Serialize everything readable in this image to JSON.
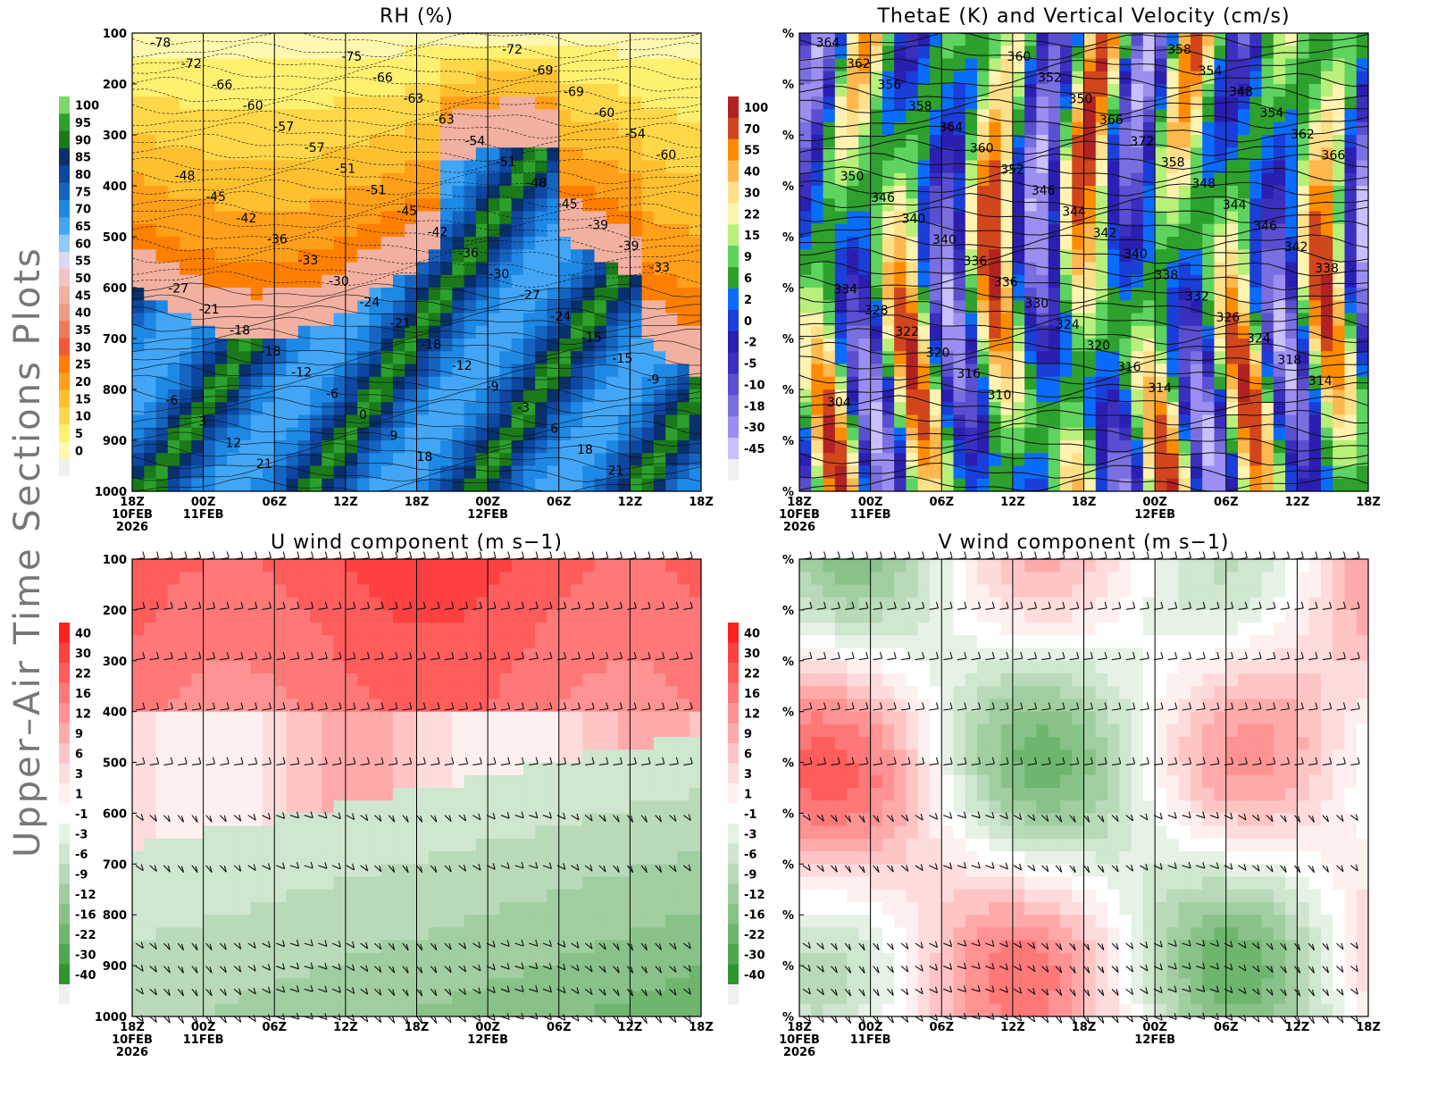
{
  "page": {
    "side_title": "Upper–Air Time Sections Plots"
  },
  "chart_data": [
    {
      "type": "heatmap",
      "id": "rh",
      "title": "RH (%)",
      "y_axis": {
        "range": [
          1000,
          100
        ],
        "reversed": true,
        "tick_labels": [
          "100",
          "200",
          "300",
          "400",
          "500",
          "600",
          "700",
          "800",
          "900",
          "1000"
        ]
      },
      "x_axis": {
        "tick_labels": [
          "18Z",
          "00Z",
          "06Z",
          "12Z",
          "18Z",
          "00Z",
          "06Z",
          "12Z",
          "18Z"
        ],
        "date_labels": [
          {
            "at": 0,
            "text": "10FEB"
          },
          {
            "at": 0,
            "text2": "2026"
          },
          {
            "at": 1,
            "text": "11FEB"
          },
          {
            "at": 5,
            "text": "12FEB"
          }
        ],
        "start": "18Z 10FEB 2026"
      },
      "colorbar": {
        "side": "left",
        "levels": [
          "100",
          "95",
          "90",
          "85",
          "80",
          "75",
          "70",
          "65",
          "60",
          "55",
          "50",
          "45",
          "40",
          "35",
          "30",
          "25",
          "20",
          "15",
          "10",
          "5",
          "0"
        ],
        "colors": [
          "#7fd66a",
          "#2ca02c",
          "#1a7a1a",
          "#08306b",
          "#0d47a1",
          "#1565c0",
          "#1e88e5",
          "#42a5f5",
          "#90caf9",
          "#ddd8f0",
          "#f4c4c4",
          "#f2b0a0",
          "#f09a80",
          "#f07a5a",
          "#f05a3a",
          "#ff7f00",
          "#ff9f1a",
          "#ffc030",
          "#ffd84a",
          "#fff070",
          "#fff8b0"
        ]
      },
      "contour_labels": [
        "-78",
        "-72",
        "-75",
        "-72",
        "-69",
        "-66",
        "-66",
        "-69",
        "-63",
        "-60",
        "-60",
        "-63",
        "-57",
        "-54",
        "-54",
        "-57",
        "-60",
        "-51",
        "-51",
        "-48",
        "-48",
        "-51",
        "-45",
        "-45",
        "-45",
        "-42",
        "-39",
        "-42",
        "-36",
        "-39",
        "-36",
        "-33",
        "-33",
        "-30",
        "-30",
        "-27",
        "-27",
        "-24",
        "-21",
        "-24",
        "-21",
        "-18",
        "-15",
        "-18",
        "-18",
        "-15",
        "-12",
        "-12",
        "-9",
        "-9",
        "-6",
        "-6",
        "-3",
        "0",
        "3",
        "6",
        "9",
        "12",
        "18",
        "18",
        "21",
        "21"
      ]
    },
    {
      "type": "heatmap",
      "id": "thetae",
      "title": "ThetaE (K) and Vertical Velocity (cm/s)",
      "y_axis": {
        "tick_labels": [
          "%",
          "%",
          "%",
          "%",
          "%",
          "%",
          "%",
          "%",
          "%",
          "%"
        ]
      },
      "x_axis": {
        "tick_labels": [
          "18Z",
          "00Z",
          "06Z",
          "12Z",
          "18Z",
          "00Z",
          "06Z",
          "12Z",
          "18Z"
        ],
        "start": "18Z 10FEB 2026"
      },
      "colorbar": {
        "side": "left",
        "levels": [
          "100",
          "70",
          "55",
          "40",
          "30",
          "22",
          "15",
          "9",
          "6",
          "2",
          "0",
          "-2",
          "-5",
          "-10",
          "-18",
          "-30",
          "-45"
        ],
        "colors": [
          "#b22222",
          "#d2461e",
          "#ff8c00",
          "#ffb84d",
          "#ffe08a",
          "#fff3b0",
          "#b8f07a",
          "#5fd35f",
          "#2ea02e",
          "#0a6cff",
          "#1a3fd8",
          "#2a1fb0",
          "#3b2fc0",
          "#5a4fd0",
          "#7a6fe0",
          "#9a8ff0",
          "#c8c0ff"
        ]
      },
      "contour_labels": [
        "364",
        "358",
        "360",
        "362",
        "354",
        "352",
        "356",
        "348",
        "350",
        "358",
        "354",
        "366",
        "364",
        "362",
        "372",
        "360",
        "366",
        "358",
        "352",
        "350",
        "348",
        "346",
        "346",
        "344",
        "344",
        "340",
        "346",
        "342",
        "340",
        "342",
        "340",
        "336",
        "338",
        "338",
        "336",
        "334",
        "332",
        "330",
        "328",
        "326",
        "324",
        "322",
        "324",
        "320",
        "320",
        "318",
        "316",
        "316",
        "314",
        "314",
        "310",
        "304"
      ]
    },
    {
      "type": "heatmap",
      "id": "u",
      "title": "U wind component (m s−1)",
      "y_axis": {
        "range": [
          1000,
          100
        ],
        "reversed": true,
        "tick_labels": [
          "100",
          "200",
          "300",
          "400",
          "500",
          "600",
          "700",
          "800",
          "900",
          "1000"
        ]
      },
      "x_axis": {
        "tick_labels": [
          "18Z",
          "00Z",
          "06Z",
          "12Z",
          "18Z",
          "00Z",
          "06Z",
          "12Z",
          "18Z"
        ],
        "start": "18Z 10FEB 2026"
      },
      "colorbar": {
        "side": "left",
        "levels": [
          "40",
          "30",
          "22",
          "16",
          "12",
          "9",
          "6",
          "3",
          "1",
          "-1",
          "-3",
          "-6",
          "-9",
          "-12",
          "-16",
          "-22",
          "-30",
          "-40"
        ],
        "colors": [
          "#ff2020",
          "#ff4040",
          "#ff5c5c",
          "#ff7878",
          "#ff9292",
          "#ffaaaa",
          "#ffc4c4",
          "#ffdcdc",
          "#fff0f0",
          "#ffffff",
          "#e6f2e6",
          "#cfe6cf",
          "#b8dab8",
          "#a0cea0",
          "#88c288",
          "#6eb66e",
          "#4fa84f",
          "#2e962e"
        ]
      },
      "contour_labels": []
    },
    {
      "type": "heatmap",
      "id": "v",
      "title": "V wind component (m s−1)",
      "y_axis": {
        "tick_labels": [
          "%",
          "%",
          "%",
          "%",
          "%",
          "%",
          "%",
          "%",
          "%",
          "%"
        ]
      },
      "x_axis": {
        "tick_labels": [
          "18Z",
          "00Z",
          "06Z",
          "12Z",
          "18Z",
          "00Z",
          "06Z",
          "12Z",
          "18Z"
        ],
        "start": "18Z 10FEB 2026"
      },
      "colorbar": {
        "side": "left",
        "levels": [
          "40",
          "30",
          "22",
          "16",
          "12",
          "9",
          "6",
          "3",
          "1",
          "-1",
          "-3",
          "-6",
          "-9",
          "-12",
          "-16",
          "-22",
          "-30",
          "-40"
        ],
        "colors": [
          "#ff2020",
          "#ff4040",
          "#ff5c5c",
          "#ff7878",
          "#ff9292",
          "#ffaaaa",
          "#ffc4c4",
          "#ffdcdc",
          "#fff0f0",
          "#ffffff",
          "#e6f2e6",
          "#cfe6cf",
          "#b8dab8",
          "#a0cea0",
          "#88c288",
          "#6eb66e",
          "#4fa84f",
          "#2e962e"
        ]
      },
      "contour_labels": []
    }
  ]
}
